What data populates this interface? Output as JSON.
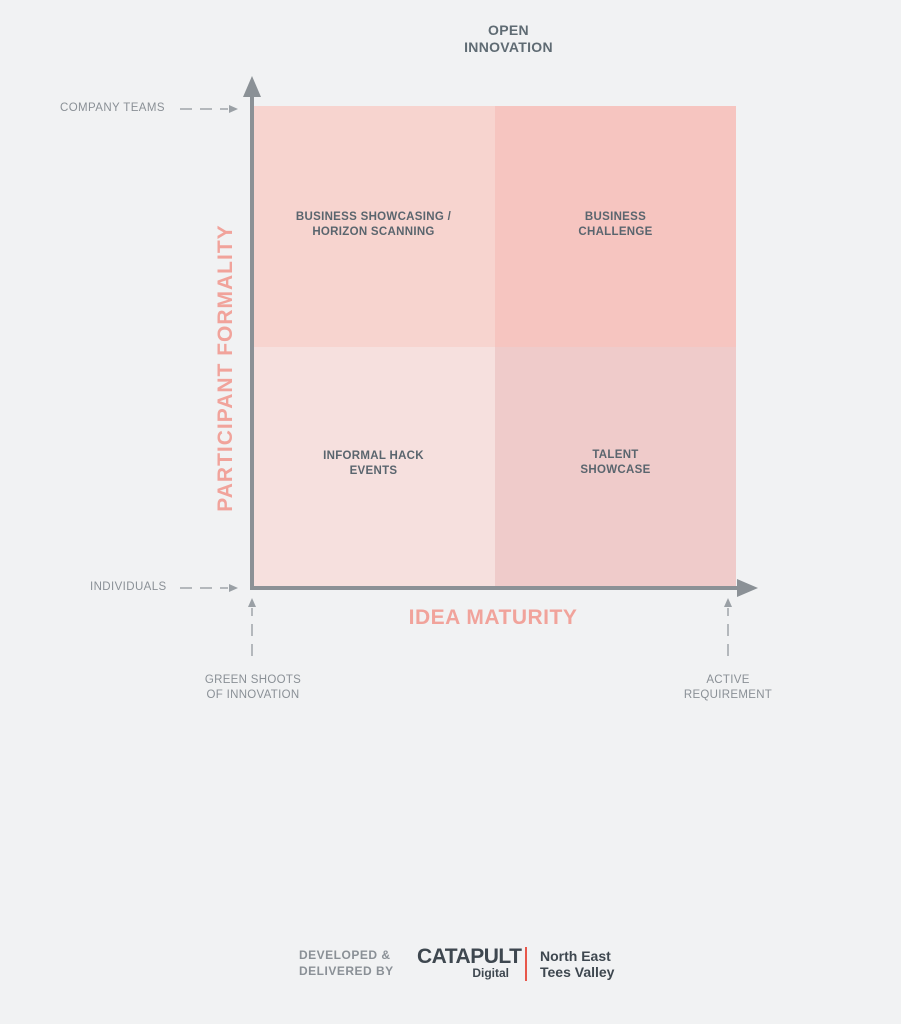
{
  "title": "OPEN\nINNOVATION",
  "axes": {
    "y_label": "PARTICIPANT FORMALITY",
    "x_label": "IDEA MATURITY",
    "y_top": "COMPANY TEAMS",
    "y_bottom": "INDIVIDUALS",
    "x_left": "GREEN SHOOTS\nOF INNOVATION",
    "x_right": "ACTIVE\nREQUIREMENT"
  },
  "quadrants": {
    "top_left": "BUSINESS SHOWCASING /\nHORIZON SCANNING",
    "top_right": "BUSINESS\nCHALLENGE",
    "bottom_left": "INFORMAL HACK\nEVENTS",
    "bottom_right": "TALENT\nSHOWCASE"
  },
  "colors": {
    "top_left": "#f7d4cf",
    "top_right": "#f6c5c0",
    "bottom_left": "#f6e0de",
    "bottom_right": "#efcbca",
    "axis": "#8b9196",
    "axis_label": "#f1a39b",
    "brand_divider": "#e8574a"
  },
  "footer": {
    "credit": "DEVELOPED &\nDELIVERED BY",
    "brand_name": "CATAPULT",
    "brand_sub": "Digital",
    "region": "North East\nTees Valley"
  }
}
